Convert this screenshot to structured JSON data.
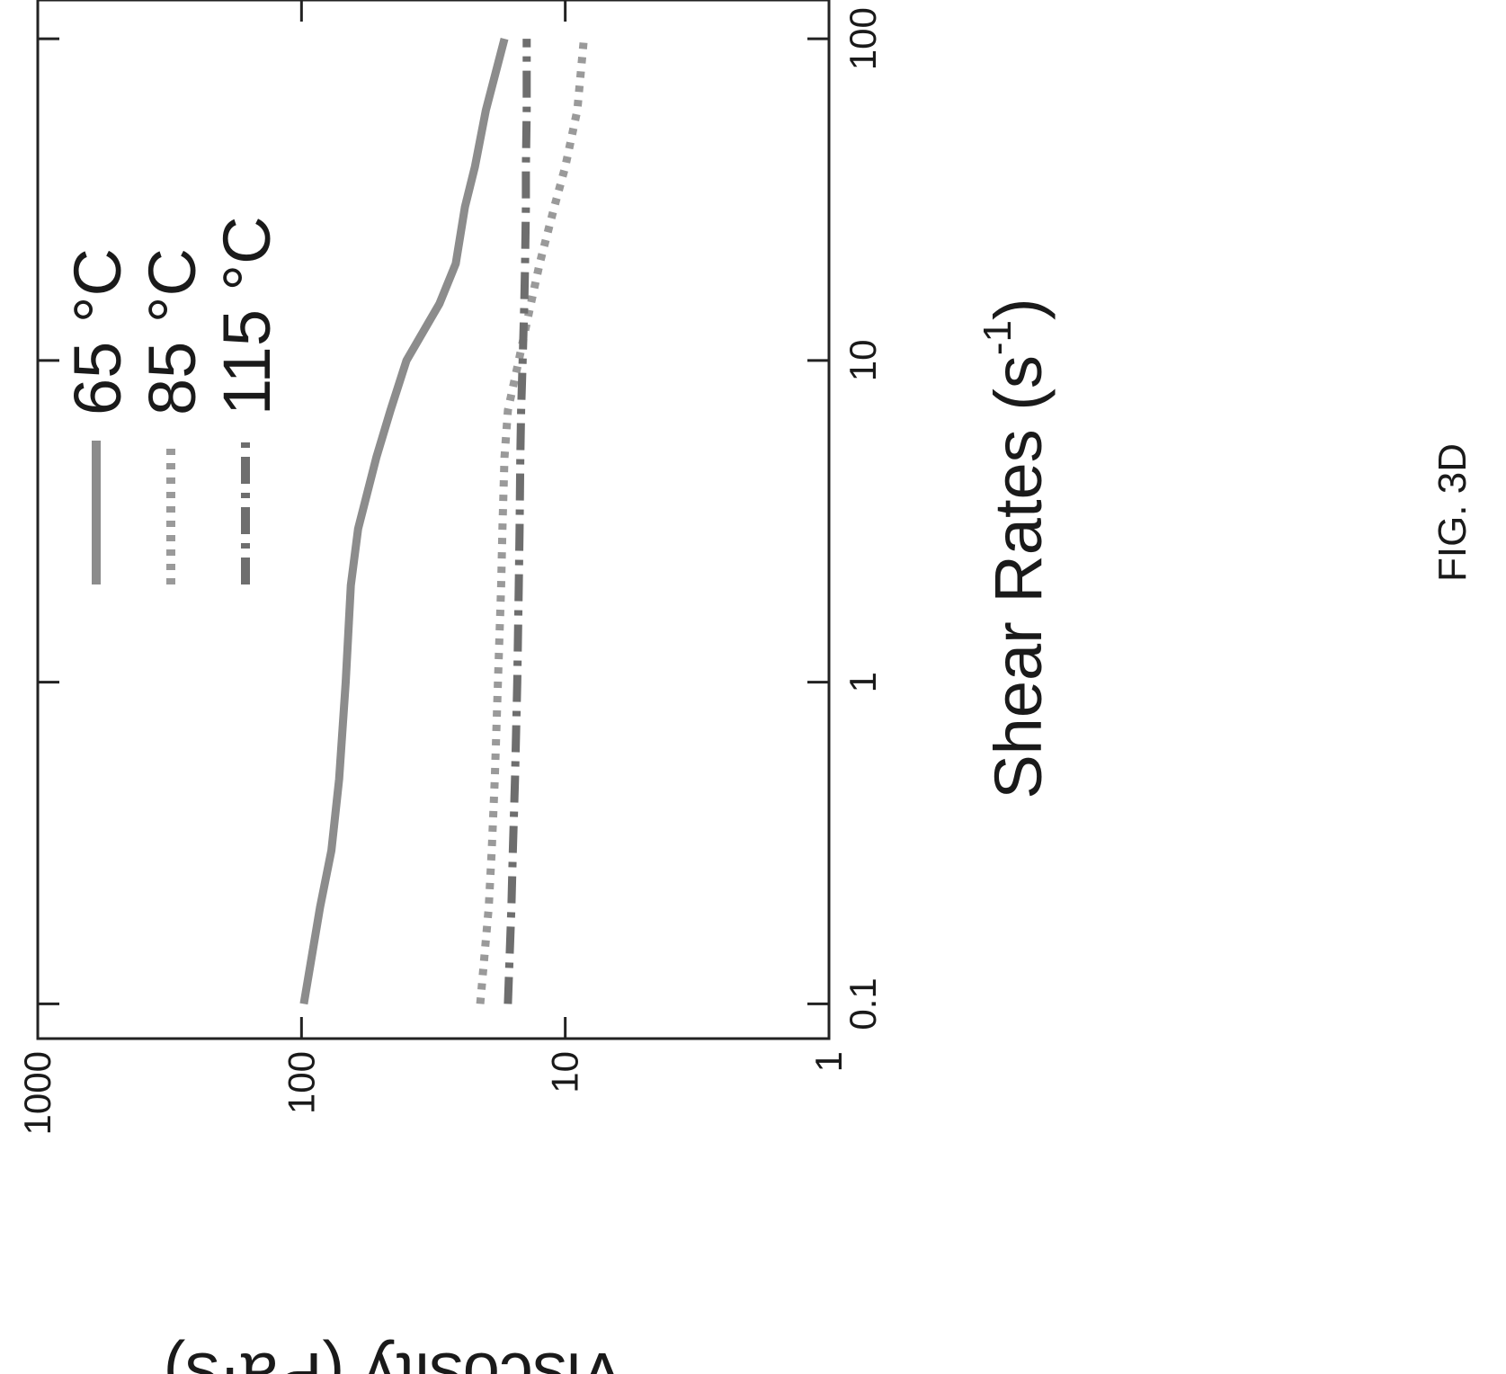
{
  "figure_label": "FIG. 3D",
  "chart_data": {
    "type": "line",
    "title": "",
    "xlabel": "Shear Rates (s",
    "xlabel_superscript": "-1",
    "xlabel_close": ")",
    "ylabel": "Viscosity (Pa·s)",
    "xscale": "log",
    "yscale": "log",
    "xlim": [
      0.1,
      100
    ],
    "ylim": [
      1,
      1000
    ],
    "xticks": [
      0.1,
      1,
      10,
      100
    ],
    "xtick_labels": [
      "0.1",
      "1",
      "10",
      "100"
    ],
    "yticks": [
      1,
      10,
      100,
      1000
    ],
    "ytick_labels": [
      "1",
      "10",
      "100",
      "1000"
    ],
    "grid": false,
    "legend_position": "top-right",
    "orientation": "rotated 90° counter-clockwise on the page",
    "series": [
      {
        "name": "65 °C",
        "line_style": "solid",
        "color": "#8c8c8c",
        "x": [
          0.1,
          0.2,
          0.3,
          0.5,
          1,
          2,
          3,
          5,
          7,
          10,
          15,
          20,
          30,
          40,
          60,
          100
        ],
        "y": [
          98,
          85,
          77,
          72,
          68,
          65,
          61,
          52,
          46,
          40,
          30,
          26,
          24,
          22,
          20,
          17
        ]
      },
      {
        "name": "85 °C",
        "line_style": "dotted",
        "color": "#9a9a9a",
        "x": [
          0.1,
          0.2,
          0.3,
          0.5,
          1,
          2,
          3,
          5,
          7,
          10,
          15,
          20,
          30,
          40,
          60,
          100
        ],
        "y": [
          21,
          19.5,
          19,
          18.5,
          18,
          17.5,
          17.3,
          17,
          16.5,
          15,
          13.5,
          12.5,
          11,
          10,
          9,
          8.5
        ]
      },
      {
        "name": "115 °C",
        "line_style": "dash-dot",
        "color": "#6e6e6e",
        "x": [
          0.1,
          0.2,
          0.3,
          0.5,
          1,
          2,
          3,
          5,
          7,
          10,
          15,
          20,
          30,
          40,
          60,
          100
        ],
        "y": [
          16.5,
          16,
          15.8,
          15.5,
          15.2,
          15,
          14.9,
          14.8,
          14.7,
          14.5,
          14.3,
          14.2,
          14.1,
          14.1,
          14,
          14
        ]
      }
    ]
  }
}
